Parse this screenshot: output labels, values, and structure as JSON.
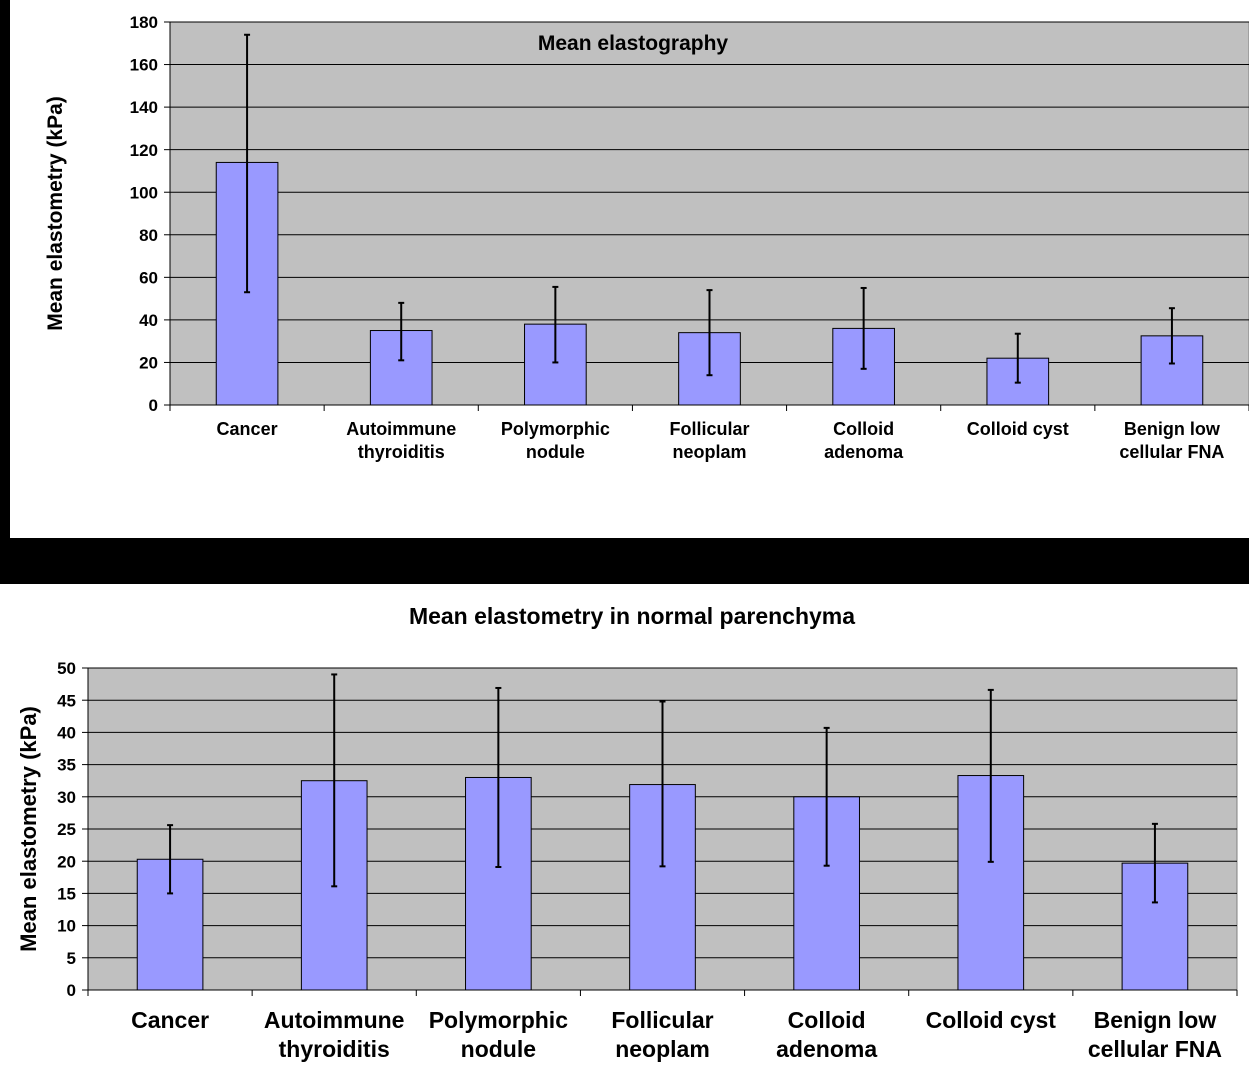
{
  "chart_data": [
    {
      "type": "bar",
      "title": "Mean elastography",
      "xlabel": "",
      "ylabel": "Mean elastometry (kPa)",
      "ylim": [
        0,
        180
      ],
      "yticks": [
        "0",
        "20",
        "40",
        "60",
        "80",
        "100",
        "120",
        "140",
        "160",
        "180"
      ],
      "grid": true,
      "legend": "none",
      "bar_color": "#9999ff",
      "plot_bg": "#c0c0c0",
      "categories": [
        [
          "Cancer"
        ],
        [
          "Autoimmune",
          "thyroiditis"
        ],
        [
          "Polymorphic",
          "nodule"
        ],
        [
          "Follicular",
          "neoplam"
        ],
        [
          "Colloid",
          "adenoma"
        ],
        [
          "Colloid cyst"
        ],
        [
          "Benign low",
          "cellular FNA"
        ]
      ],
      "values": [
        114,
        35,
        38,
        34,
        36,
        22,
        32.5
      ],
      "error_low": [
        53,
        21,
        20,
        14,
        17,
        10.5,
        19.5
      ],
      "error_high": [
        174,
        48,
        55.5,
        54,
        55,
        33.5,
        45.5
      ]
    },
    {
      "type": "bar",
      "title": "Mean elastometry in normal parenchyma",
      "xlabel": "",
      "ylabel": "Mean elastometry (kPa)",
      "ylim": [
        0,
        50
      ],
      "yticks": [
        "0",
        "5",
        "10",
        "15",
        "20",
        "25",
        "30",
        "35",
        "40",
        "45",
        "50"
      ],
      "grid": true,
      "legend": "none",
      "bar_color": "#9999ff",
      "plot_bg": "#c0c0c0",
      "categories": [
        [
          "Cancer"
        ],
        [
          "Autoimmune",
          "thyroiditis"
        ],
        [
          "Polymorphic",
          "nodule"
        ],
        [
          "Follicular",
          "neoplam"
        ],
        [
          "Colloid",
          "adenoma"
        ],
        [
          "Colloid cyst"
        ],
        [
          "Benign low",
          "cellular FNA"
        ]
      ],
      "values": [
        20.3,
        32.5,
        33,
        31.9,
        30,
        33.3,
        19.7
      ],
      "error_low": [
        15,
        16.1,
        19.1,
        19.2,
        19.3,
        19.9,
        13.6
      ],
      "error_high": [
        25.6,
        49,
        46.9,
        44.8,
        40.7,
        46.6,
        25.8
      ]
    }
  ]
}
